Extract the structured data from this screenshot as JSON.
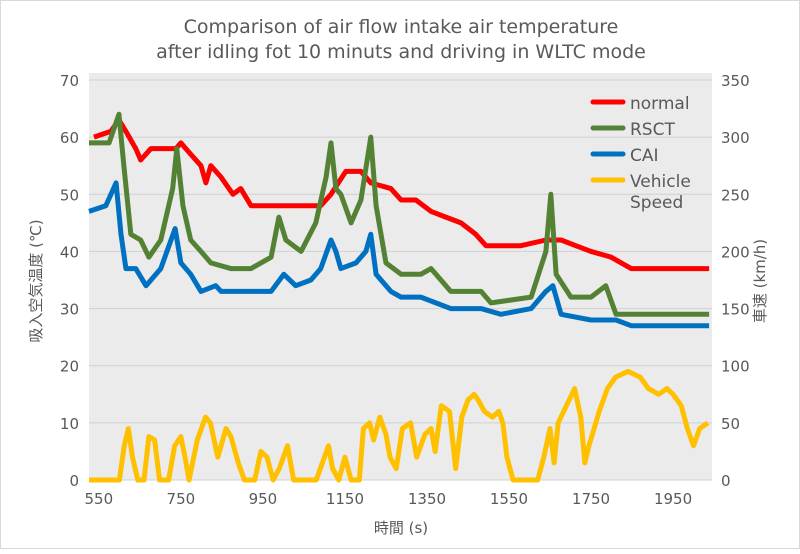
{
  "chart_data": {
    "type": "line",
    "title": [
      "Comparison of air flow intake air temperature",
      "after idling fot 10 minuts and driving in WLTC mode"
    ],
    "xlabel": "時間 (s)",
    "ylabel": "吸入空気温度 (℃)",
    "y2label": "車速 (km/h)",
    "xlim": [
      526,
      2045
    ],
    "ylim": [
      0,
      70
    ],
    "y2lim": [
      0,
      350
    ],
    "xticks": [
      550,
      750,
      950,
      1150,
      1350,
      1550,
      1750,
      1950
    ],
    "yticks": [
      0,
      10,
      20,
      30,
      40,
      50,
      60,
      70
    ],
    "y2ticks": [
      0,
      50,
      100,
      150,
      200,
      250,
      300,
      350
    ],
    "grid": true,
    "legend_position": "top-right",
    "series": [
      {
        "name": "normal",
        "color": "#ff0000",
        "axis": "left",
        "points": [
          [
            538,
            60
          ],
          [
            579,
            61
          ],
          [
            599,
            63
          ],
          [
            616,
            61
          ],
          [
            640,
            58
          ],
          [
            652,
            56
          ],
          [
            677,
            58
          ],
          [
            713,
            58
          ],
          [
            738,
            58
          ],
          [
            750,
            59
          ],
          [
            774,
            57
          ],
          [
            799,
            55
          ],
          [
            811,
            52
          ],
          [
            823,
            55
          ],
          [
            848,
            53
          ],
          [
            877,
            50
          ],
          [
            896,
            51
          ],
          [
            921,
            48
          ],
          [
            970,
            48
          ],
          [
            1043,
            48
          ],
          [
            1091,
            48
          ],
          [
            1116,
            50
          ],
          [
            1152,
            54
          ],
          [
            1189,
            54
          ],
          [
            1213,
            52
          ],
          [
            1262,
            51
          ],
          [
            1287,
            49
          ],
          [
            1323,
            49
          ],
          [
            1360,
            47
          ],
          [
            1396,
            46
          ],
          [
            1433,
            45
          ],
          [
            1469,
            43
          ],
          [
            1494,
            41
          ],
          [
            1579,
            41
          ],
          [
            1640,
            42
          ],
          [
            1677,
            42
          ],
          [
            1713,
            41
          ],
          [
            1750,
            40
          ],
          [
            1799,
            39
          ],
          [
            1848,
            37
          ],
          [
            1970,
            37
          ],
          [
            2038,
            37
          ]
        ]
      },
      {
        "name": "RSCT",
        "color": "#548235",
        "axis": "left",
        "points": [
          [
            526,
            59
          ],
          [
            575,
            59
          ],
          [
            599,
            64
          ],
          [
            611,
            55
          ],
          [
            628,
            43
          ],
          [
            652,
            42
          ],
          [
            672,
            39
          ],
          [
            701,
            42
          ],
          [
            730,
            51
          ],
          [
            740,
            58
          ],
          [
            755,
            48
          ],
          [
            774,
            42
          ],
          [
            799,
            40
          ],
          [
            823,
            38
          ],
          [
            872,
            37
          ],
          [
            921,
            37
          ],
          [
            970,
            39
          ],
          [
            989,
            46
          ],
          [
            1006,
            42
          ],
          [
            1043,
            40
          ],
          [
            1079,
            45
          ],
          [
            1104,
            53
          ],
          [
            1116,
            59
          ],
          [
            1128,
            51
          ],
          [
            1140,
            50
          ],
          [
            1165,
            45
          ],
          [
            1189,
            49
          ],
          [
            1213,
            60
          ],
          [
            1226,
            48
          ],
          [
            1250,
            38
          ],
          [
            1287,
            36
          ],
          [
            1335,
            36
          ],
          [
            1360,
            37
          ],
          [
            1384,
            35
          ],
          [
            1408,
            33
          ],
          [
            1482,
            33
          ],
          [
            1506,
            31
          ],
          [
            1604,
            32
          ],
          [
            1640,
            40
          ],
          [
            1652,
            50
          ],
          [
            1665,
            36
          ],
          [
            1701,
            32
          ],
          [
            1750,
            32
          ],
          [
            1786,
            34
          ],
          [
            1811,
            29
          ],
          [
            2038,
            29
          ]
        ]
      },
      {
        "name": "CAI",
        "color": "#0070c0",
        "axis": "left",
        "points": [
          [
            526,
            47
          ],
          [
            567,
            48
          ],
          [
            592,
            52
          ],
          [
            604,
            43
          ],
          [
            616,
            37
          ],
          [
            640,
            37
          ],
          [
            665,
            34
          ],
          [
            701,
            37
          ],
          [
            726,
            42
          ],
          [
            736,
            44
          ],
          [
            750,
            38
          ],
          [
            774,
            36
          ],
          [
            799,
            33
          ],
          [
            835,
            34
          ],
          [
            848,
            33
          ],
          [
            970,
            33
          ],
          [
            1001,
            36
          ],
          [
            1030,
            34
          ],
          [
            1067,
            35
          ],
          [
            1091,
            37
          ],
          [
            1116,
            42
          ],
          [
            1128,
            40
          ],
          [
            1140,
            37
          ],
          [
            1177,
            38
          ],
          [
            1201,
            40
          ],
          [
            1213,
            43
          ],
          [
            1226,
            36
          ],
          [
            1262,
            33
          ],
          [
            1287,
            32
          ],
          [
            1335,
            32
          ],
          [
            1408,
            30
          ],
          [
            1482,
            30
          ],
          [
            1530,
            29
          ],
          [
            1604,
            30
          ],
          [
            1640,
            33
          ],
          [
            1657,
            34
          ],
          [
            1677,
            29
          ],
          [
            1750,
            28
          ],
          [
            1811,
            28
          ],
          [
            1848,
            27
          ],
          [
            2038,
            27
          ]
        ]
      },
      {
        "name": "Vehicle Speed",
        "legend_lines": [
          "Vehicle",
          "Speed"
        ],
        "color": "#ffc000",
        "axis": "right",
        "points": [
          [
            526,
            0
          ],
          [
            600,
            0
          ],
          [
            612,
            30
          ],
          [
            622,
            45
          ],
          [
            632,
            20
          ],
          [
            645,
            0
          ],
          [
            660,
            0
          ],
          [
            672,
            38
          ],
          [
            686,
            35
          ],
          [
            698,
            0
          ],
          [
            720,
            0
          ],
          [
            735,
            30
          ],
          [
            750,
            38
          ],
          [
            760,
            20
          ],
          [
            770,
            0
          ],
          [
            790,
            35
          ],
          [
            810,
            55
          ],
          [
            822,
            50
          ],
          [
            840,
            20
          ],
          [
            860,
            45
          ],
          [
            872,
            38
          ],
          [
            890,
            15
          ],
          [
            905,
            0
          ],
          [
            930,
            0
          ],
          [
            945,
            25
          ],
          [
            960,
            20
          ],
          [
            975,
            0
          ],
          [
            990,
            10
          ],
          [
            1000,
            20
          ],
          [
            1010,
            30
          ],
          [
            1025,
            0
          ],
          [
            1080,
            0
          ],
          [
            1095,
            15
          ],
          [
            1110,
            30
          ],
          [
            1120,
            10
          ],
          [
            1135,
            0
          ],
          [
            1150,
            20
          ],
          [
            1165,
            0
          ],
          [
            1185,
            0
          ],
          [
            1195,
            45
          ],
          [
            1210,
            50
          ],
          [
            1220,
            35
          ],
          [
            1235,
            55
          ],
          [
            1250,
            40
          ],
          [
            1260,
            20
          ],
          [
            1275,
            10
          ],
          [
            1290,
            45
          ],
          [
            1310,
            50
          ],
          [
            1325,
            20
          ],
          [
            1345,
            40
          ],
          [
            1360,
            45
          ],
          [
            1370,
            25
          ],
          [
            1385,
            65
          ],
          [
            1405,
            60
          ],
          [
            1420,
            10
          ],
          [
            1435,
            55
          ],
          [
            1450,
            70
          ],
          [
            1465,
            75
          ],
          [
            1475,
            70
          ],
          [
            1490,
            60
          ],
          [
            1510,
            55
          ],
          [
            1525,
            60
          ],
          [
            1535,
            50
          ],
          [
            1545,
            20
          ],
          [
            1560,
            0
          ],
          [
            1620,
            0
          ],
          [
            1635,
            20
          ],
          [
            1650,
            45
          ],
          [
            1660,
            15
          ],
          [
            1670,
            50
          ],
          [
            1690,
            65
          ],
          [
            1710,
            80
          ],
          [
            1725,
            55
          ],
          [
            1735,
            15
          ],
          [
            1745,
            30
          ],
          [
            1770,
            60
          ],
          [
            1790,
            80
          ],
          [
            1810,
            90
          ],
          [
            1840,
            95
          ],
          [
            1870,
            90
          ],
          [
            1890,
            80
          ],
          [
            1915,
            75
          ],
          [
            1935,
            80
          ],
          [
            1950,
            75
          ],
          [
            1970,
            65
          ],
          [
            1985,
            45
          ],
          [
            2000,
            30
          ],
          [
            2015,
            45
          ],
          [
            2035,
            50
          ]
        ]
      }
    ]
  }
}
